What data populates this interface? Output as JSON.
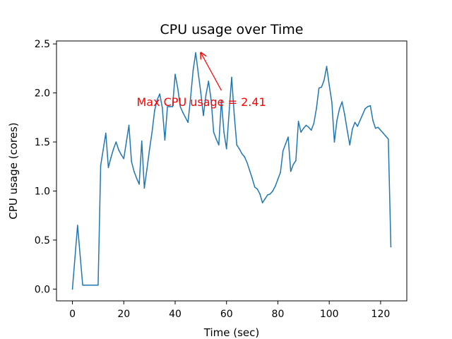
{
  "chart_data": {
    "type": "line",
    "title": "CPU usage over Time",
    "xlabel": "Time (sec)",
    "ylabel": "CPU usage (cores)",
    "xlim": [
      -6.2,
      130.2
    ],
    "ylim": [
      -0.12,
      2.53
    ],
    "xticks": [
      0,
      20,
      40,
      60,
      80,
      100,
      120
    ],
    "yticks": [
      0.0,
      0.5,
      1.0,
      1.5,
      2.0,
      2.5
    ],
    "xtick_labels": [
      "0",
      "20",
      "40",
      "60",
      "80",
      "100",
      "120"
    ],
    "ytick_labels": [
      "0.0",
      "0.5",
      "1.0",
      "1.5",
      "2.0",
      "2.5"
    ],
    "grid": false,
    "line_color": "#1f77b4",
    "series": [
      {
        "name": "CPU usage",
        "x": [
          0,
          2,
          4,
          6,
          8,
          10,
          11,
          13,
          14,
          15,
          16,
          17,
          18,
          19,
          20,
          21,
          22,
          23,
          24,
          25,
          26,
          27,
          28,
          29,
          30,
          31,
          32,
          33,
          34,
          35,
          36,
          37,
          38,
          39,
          40,
          41,
          42,
          43,
          44,
          45,
          46,
          47,
          48,
          49,
          50,
          51,
          52,
          53,
          54,
          55,
          56,
          57,
          58,
          59,
          60,
          61,
          62,
          63,
          64,
          65,
          66,
          67,
          68,
          69,
          70,
          71,
          72,
          73,
          74,
          75,
          76,
          77,
          78,
          79,
          80,
          81,
          82,
          83,
          84,
          85,
          86,
          87,
          88,
          89,
          90,
          91,
          92,
          93,
          94,
          95,
          96,
          97,
          98,
          99,
          100,
          101,
          102,
          103,
          104,
          105,
          106,
          107,
          108,
          109,
          110,
          111,
          112,
          113,
          114,
          115,
          116,
          117,
          118,
          119,
          120,
          121,
          122,
          123,
          124
        ],
        "y": [
          0.0,
          0.65,
          0.04,
          0.04,
          0.04,
          0.04,
          1.26,
          1.59,
          1.24,
          1.34,
          1.43,
          1.5,
          1.42,
          1.37,
          1.33,
          1.5,
          1.67,
          1.3,
          1.2,
          1.13,
          1.07,
          1.51,
          1.03,
          1.22,
          1.42,
          1.6,
          1.82,
          1.93,
          1.99,
          1.85,
          1.52,
          1.86,
          1.86,
          1.86,
          2.19,
          2.05,
          1.86,
          1.8,
          1.75,
          1.7,
          1.95,
          2.23,
          2.41,
          2.2,
          2.0,
          1.77,
          1.98,
          2.12,
          1.93,
          1.6,
          1.53,
          1.47,
          1.92,
          1.6,
          1.43,
          1.8,
          2.16,
          1.78,
          1.47,
          1.43,
          1.38,
          1.35,
          1.29,
          1.21,
          1.13,
          1.04,
          1.02,
          0.97,
          0.88,
          0.92,
          0.96,
          0.97,
          1.0,
          1.05,
          1.12,
          1.19,
          1.41,
          1.48,
          1.55,
          1.2,
          1.27,
          1.31,
          1.71,
          1.6,
          1.64,
          1.67,
          1.65,
          1.62,
          1.69,
          1.84,
          2.05,
          2.06,
          2.13,
          2.27,
          2.08,
          1.91,
          1.5,
          1.72,
          1.84,
          1.91,
          1.78,
          1.62,
          1.47,
          1.63,
          1.7,
          1.66,
          1.72,
          1.78,
          1.84,
          1.86,
          1.87,
          1.72,
          1.64,
          1.65,
          1.62,
          1.59,
          1.56,
          1.53,
          0.43
        ]
      }
    ],
    "annotation": {
      "text": "Max CPU usage = 2.41",
      "color": "#ff0000",
      "point_x": 50,
      "point_y": 2.41,
      "text_x": 25,
      "text_y": 1.91
    }
  }
}
